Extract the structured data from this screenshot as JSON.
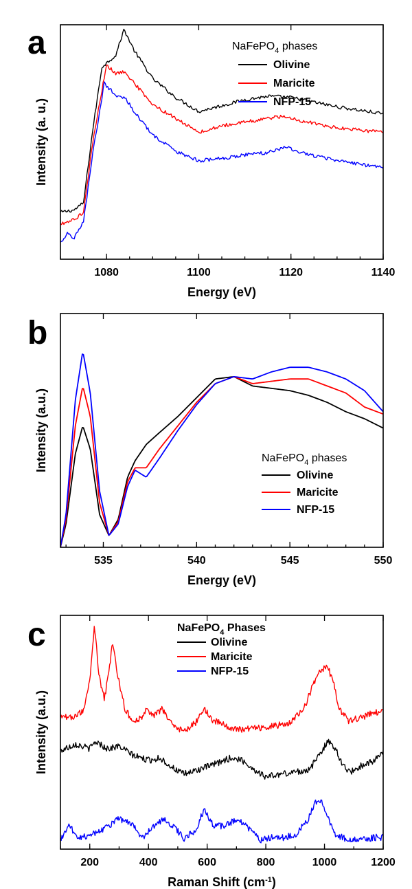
{
  "chart_data": [
    {
      "panel": "a",
      "type": "line",
      "xlabel": "Energy (eV)",
      "ylabel": "Intensity (a. u.)",
      "xlim": [
        1070,
        1140
      ],
      "ylim": [
        0,
        1
      ],
      "xticks": [
        1080,
        1100,
        1120,
        1140
      ],
      "xtick_labels": [
        "1080",
        "1100",
        "1120",
        "1140"
      ],
      "legend": {
        "title": "NaFePO",
        "title_subscript": "4",
        "title_suffix": " phases",
        "placement": "top-right"
      },
      "series": [
        {
          "name": "Olivine",
          "color": "#000000",
          "points": [
            [
              1070,
              0.2
            ],
            [
              1073,
              0.21
            ],
            [
              1075,
              0.24
            ],
            [
              1077,
              0.55
            ],
            [
              1079,
              0.82
            ],
            [
              1082,
              0.87
            ],
            [
              1083.8,
              0.98
            ],
            [
              1086,
              0.89
            ],
            [
              1090,
              0.77
            ],
            [
              1095,
              0.69
            ],
            [
              1100,
              0.63
            ],
            [
              1105,
              0.655
            ],
            [
              1110,
              0.68
            ],
            [
              1115,
              0.695
            ],
            [
              1120,
              0.69
            ],
            [
              1125,
              0.67
            ],
            [
              1130,
              0.65
            ],
            [
              1135,
              0.635
            ],
            [
              1140,
              0.62
            ]
          ]
        },
        {
          "name": "Maricite",
          "color": "#ff0000",
          "points": [
            [
              1070,
              0.15
            ],
            [
              1073,
              0.17
            ],
            [
              1075,
              0.2
            ],
            [
              1077,
              0.5
            ],
            [
              1080,
              0.83
            ],
            [
              1082,
              0.79
            ],
            [
              1084,
              0.8
            ],
            [
              1086,
              0.75
            ],
            [
              1090,
              0.66
            ],
            [
              1095,
              0.6
            ],
            [
              1100,
              0.54
            ],
            [
              1105,
              0.57
            ],
            [
              1110,
              0.585
            ],
            [
              1115,
              0.6
            ],
            [
              1118,
              0.61
            ],
            [
              1122,
              0.59
            ],
            [
              1130,
              0.56
            ],
            [
              1135,
              0.55
            ],
            [
              1140,
              0.54
            ]
          ]
        },
        {
          "name": "NFP-15",
          "color": "#0000ff",
          "points": [
            [
              1070,
              0.07
            ],
            [
              1071.5,
              0.11
            ],
            [
              1073,
              0.09
            ],
            [
              1075,
              0.16
            ],
            [
              1077,
              0.45
            ],
            [
              1079.5,
              0.75
            ],
            [
              1082,
              0.7
            ],
            [
              1084,
              0.69
            ],
            [
              1086,
              0.63
            ],
            [
              1090,
              0.53
            ],
            [
              1095,
              0.46
            ],
            [
              1100,
              0.42
            ],
            [
              1105,
              0.43
            ],
            [
              1110,
              0.445
            ],
            [
              1115,
              0.455
            ],
            [
              1119,
              0.48
            ],
            [
              1122,
              0.455
            ],
            [
              1130,
              0.42
            ],
            [
              1135,
              0.405
            ],
            [
              1140,
              0.39
            ]
          ]
        }
      ]
    },
    {
      "panel": "b",
      "type": "line",
      "xlabel": "Energy (eV)",
      "ylabel": "Intensity (a.u.)",
      "xlim": [
        532.7,
        550
      ],
      "ylim": [
        0,
        1
      ],
      "xticks": [
        535,
        540,
        545,
        550
      ],
      "xtick_labels": [
        "535",
        "540",
        "545",
        "550"
      ],
      "legend": {
        "title": "NaFePO",
        "title_subscript": "4",
        "title_suffix": " phases",
        "placement": "bottom-right"
      },
      "series": [
        {
          "name": "Olivine",
          "color": "#000000",
          "points": [
            [
              532.7,
              0.0
            ],
            [
              533,
              0.1
            ],
            [
              533.5,
              0.4
            ],
            [
              533.9,
              0.52
            ],
            [
              534.3,
              0.42
            ],
            [
              534.8,
              0.14
            ],
            [
              535.3,
              0.05
            ],
            [
              535.8,
              0.12
            ],
            [
              536.3,
              0.3
            ],
            [
              536.7,
              0.37
            ],
            [
              537.3,
              0.44
            ],
            [
              538,
              0.49
            ],
            [
              539,
              0.56
            ],
            [
              540,
              0.64
            ],
            [
              541,
              0.72
            ],
            [
              542,
              0.73
            ],
            [
              543,
              0.69
            ],
            [
              544,
              0.68
            ],
            [
              545,
              0.67
            ],
            [
              546,
              0.65
            ],
            [
              547,
              0.62
            ],
            [
              548,
              0.58
            ],
            [
              549,
              0.55
            ],
            [
              550,
              0.51
            ]
          ]
        },
        {
          "name": "Maricite",
          "color": "#ff0000",
          "points": [
            [
              532.7,
              0.0
            ],
            [
              533,
              0.12
            ],
            [
              533.5,
              0.52
            ],
            [
              533.9,
              0.69
            ],
            [
              534.3,
              0.56
            ],
            [
              534.8,
              0.19
            ],
            [
              535.3,
              0.05
            ],
            [
              535.8,
              0.11
            ],
            [
              536.3,
              0.28
            ],
            [
              536.7,
              0.34
            ],
            [
              537.3,
              0.34
            ],
            [
              538,
              0.42
            ],
            [
              539,
              0.52
            ],
            [
              540,
              0.62
            ],
            [
              541,
              0.7
            ],
            [
              542,
              0.73
            ],
            [
              543,
              0.7
            ],
            [
              544,
              0.71
            ],
            [
              545,
              0.72
            ],
            [
              546,
              0.72
            ],
            [
              547,
              0.69
            ],
            [
              548,
              0.66
            ],
            [
              549,
              0.6
            ],
            [
              550,
              0.57
            ]
          ]
        },
        {
          "name": "NFP-15",
          "color": "#0000ff",
          "points": [
            [
              532.7,
              0.0
            ],
            [
              533,
              0.14
            ],
            [
              533.5,
              0.63
            ],
            [
              533.9,
              0.84
            ],
            [
              534.3,
              0.66
            ],
            [
              534.8,
              0.24
            ],
            [
              535.3,
              0.05
            ],
            [
              535.8,
              0.1
            ],
            [
              536.3,
              0.26
            ],
            [
              536.7,
              0.33
            ],
            [
              537.3,
              0.3
            ],
            [
              538,
              0.38
            ],
            [
              539,
              0.5
            ],
            [
              540,
              0.61
            ],
            [
              541,
              0.7
            ],
            [
              542,
              0.73
            ],
            [
              543,
              0.72
            ],
            [
              544,
              0.75
            ],
            [
              545,
              0.77
            ],
            [
              546,
              0.77
            ],
            [
              547,
              0.75
            ],
            [
              548,
              0.72
            ],
            [
              549,
              0.67
            ],
            [
              550,
              0.58
            ]
          ]
        }
      ]
    },
    {
      "panel": "c",
      "type": "line",
      "xlabel": "Raman Shift (cm",
      "xlabel_superscript": "-1",
      "xlabel_suffix": ")",
      "ylabel": "Intensity (a.u.)",
      "xlim": [
        100,
        1200
      ],
      "ylim": [
        0,
        1
      ],
      "xticks": [
        200,
        400,
        600,
        800,
        1000,
        1200
      ],
      "xtick_labels": [
        "200",
        "400",
        "600",
        "800",
        "1000",
        "1200"
      ],
      "legend": {
        "title": "NaFePO",
        "title_subscript": "4",
        "title_suffix": " Phases",
        "placement": "top-center"
      },
      "series": [
        {
          "name": "Olivine",
          "color": "#000000",
          "points": [
            [
              100,
              0.42
            ],
            [
              150,
              0.45
            ],
            [
              200,
              0.43
            ],
            [
              220,
              0.46
            ],
            [
              260,
              0.43
            ],
            [
              300,
              0.44
            ],
            [
              350,
              0.4
            ],
            [
              400,
              0.38
            ],
            [
              440,
              0.39
            ],
            [
              480,
              0.35
            ],
            [
              520,
              0.32
            ],
            [
              570,
              0.34
            ],
            [
              620,
              0.36
            ],
            [
              680,
              0.39
            ],
            [
              720,
              0.38
            ],
            [
              760,
              0.34
            ],
            [
              800,
              0.31
            ],
            [
              850,
              0.32
            ],
            [
              900,
              0.33
            ],
            [
              950,
              0.34
            ],
            [
              980,
              0.4
            ],
            [
              1010,
              0.46
            ],
            [
              1040,
              0.43
            ],
            [
              1060,
              0.36
            ],
            [
              1090,
              0.33
            ],
            [
              1130,
              0.36
            ],
            [
              1170,
              0.38
            ],
            [
              1200,
              0.41
            ]
          ]
        },
        {
          "name": "Maricite",
          "color": "#ff0000",
          "points": [
            [
              100,
              0.56
            ],
            [
              150,
              0.57
            ],
            [
              180,
              0.59
            ],
            [
              200,
              0.72
            ],
            [
              216,
              0.96
            ],
            [
              232,
              0.74
            ],
            [
              250,
              0.64
            ],
            [
              265,
              0.76
            ],
            [
              278,
              0.88
            ],
            [
              295,
              0.74
            ],
            [
              320,
              0.6
            ],
            [
              350,
              0.54
            ],
            [
              380,
              0.57
            ],
            [
              395,
              0.6
            ],
            [
              420,
              0.57
            ],
            [
              445,
              0.6
            ],
            [
              470,
              0.55
            ],
            [
              520,
              0.5
            ],
            [
              560,
              0.54
            ],
            [
              590,
              0.6
            ],
            [
              620,
              0.55
            ],
            [
              700,
              0.51
            ],
            [
              800,
              0.52
            ],
            [
              880,
              0.54
            ],
            [
              930,
              0.6
            ],
            [
              960,
              0.7
            ],
            [
              990,
              0.77
            ],
            [
              1010,
              0.78
            ],
            [
              1030,
              0.72
            ],
            [
              1050,
              0.6
            ],
            [
              1080,
              0.55
            ],
            [
              1120,
              0.56
            ],
            [
              1160,
              0.58
            ],
            [
              1200,
              0.59
            ]
          ]
        },
        {
          "name": "NFP-15",
          "color": "#0000ff",
          "points": [
            [
              100,
              0.04
            ],
            [
              130,
              0.1
            ],
            [
              160,
              0.05
            ],
            [
              200,
              0.06
            ],
            [
              250,
              0.09
            ],
            [
              300,
              0.13
            ],
            [
              340,
              0.11
            ],
            [
              380,
              0.05
            ],
            [
              420,
              0.1
            ],
            [
              450,
              0.13
            ],
            [
              500,
              0.08
            ],
            [
              520,
              0.04
            ],
            [
              560,
              0.08
            ],
            [
              590,
              0.17
            ],
            [
              620,
              0.1
            ],
            [
              660,
              0.1
            ],
            [
              700,
              0.13
            ],
            [
              740,
              0.09
            ],
            [
              780,
              0.04
            ],
            [
              820,
              0.05
            ],
            [
              860,
              0.05
            ],
            [
              900,
              0.06
            ],
            [
              940,
              0.12
            ],
            [
              970,
              0.2
            ],
            [
              990,
              0.2
            ],
            [
              1010,
              0.14
            ],
            [
              1040,
              0.06
            ],
            [
              1080,
              0.04
            ],
            [
              1130,
              0.04
            ],
            [
              1170,
              0.05
            ],
            [
              1200,
              0.05
            ]
          ]
        }
      ]
    }
  ]
}
